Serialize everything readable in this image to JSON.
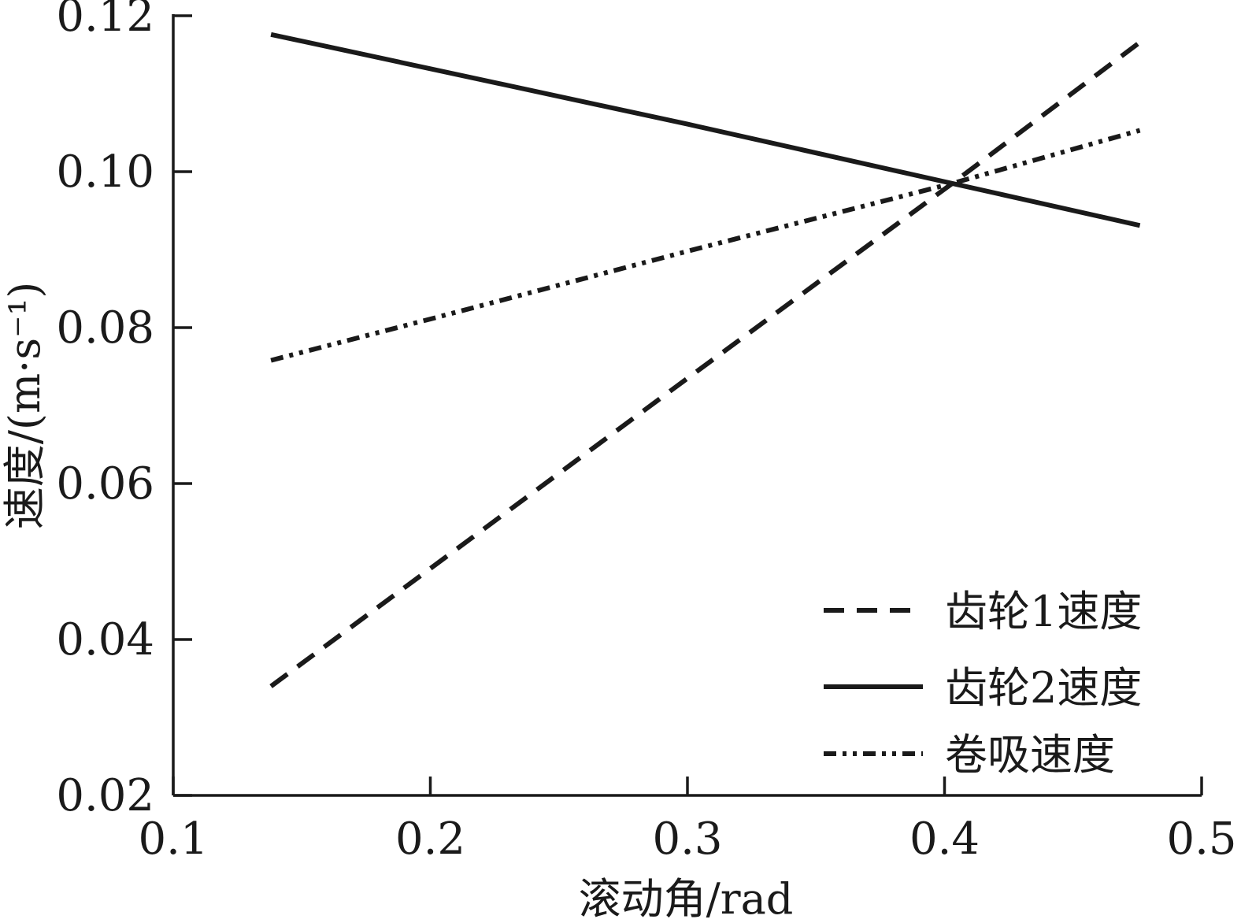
{
  "chart_data": {
    "type": "line",
    "title": "",
    "xlabel": "滚动角/rad",
    "ylabel": "速度/(m·s⁻¹)",
    "xlim": [
      0.1,
      0.5
    ],
    "ylim": [
      0.02,
      0.12
    ],
    "xticks": [
      0.1,
      0.2,
      0.3,
      0.4,
      0.5
    ],
    "xtick_labels": [
      "0.1",
      "0.2",
      "0.3",
      "0.4",
      "0.5"
    ],
    "yticks": [
      0.02,
      0.04,
      0.06,
      0.08,
      0.1,
      0.12
    ],
    "ytick_labels": [
      "0.02",
      "0.04",
      "0.06",
      "0.08",
      "0.10",
      "0.12"
    ],
    "grid": false,
    "legend_position": "bottom-right",
    "series": [
      {
        "name": "齿轮1速度",
        "style": "dashed",
        "color": "#1a1a1a",
        "x": [
          0.138,
          0.2,
          0.3,
          0.403,
          0.476
        ],
        "y": [
          0.034,
          0.0491,
          0.0735,
          0.0985,
          0.1166
        ]
      },
      {
        "name": "齿轮2速度",
        "style": "solid",
        "color": "#1a1a1a",
        "x": [
          0.138,
          0.2,
          0.3,
          0.403,
          0.476
        ],
        "y": [
          0.1176,
          0.1132,
          0.1061,
          0.0985,
          0.0931
        ]
      },
      {
        "name": "卷吸速度",
        "style": "dash-dot-dot",
        "color": "#1a1a1a",
        "x": [
          0.138,
          0.2,
          0.3,
          0.403,
          0.476
        ],
        "y": [
          0.0758,
          0.0811,
          0.0898,
          0.0985,
          0.1053
        ]
      }
    ]
  }
}
